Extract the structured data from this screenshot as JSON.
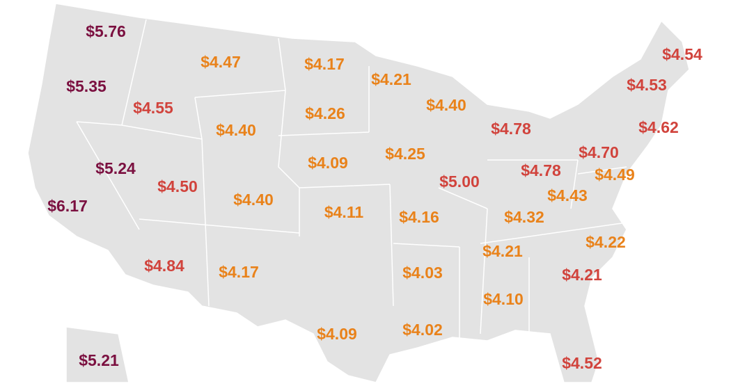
{
  "labels": [
    {
      "text": "$5.76",
      "color": "#7b1040"
    },
    {
      "text": "$4.47",
      "color": "#e9821a"
    },
    {
      "text": "$4.17",
      "color": "#e9821a"
    },
    {
      "text": "$4.54",
      "color": "#d1433c"
    },
    {
      "text": "$5.35",
      "color": "#7b1040"
    },
    {
      "text": "$4.21",
      "color": "#e9821a"
    },
    {
      "text": "$4.53",
      "color": "#d1433c"
    },
    {
      "text": "$4.55",
      "color": "#d1433c"
    },
    {
      "text": "$4.26",
      "color": "#e9821a"
    },
    {
      "text": "$4.40",
      "color": "#e9821a"
    },
    {
      "text": "$4.40",
      "color": "#e9821a"
    },
    {
      "text": "$4.78",
      "color": "#d1433c"
    },
    {
      "text": "$4.62",
      "color": "#d1433c"
    },
    {
      "text": "$4.25",
      "color": "#e9821a"
    },
    {
      "text": "$4.70",
      "color": "#d1433c"
    },
    {
      "text": "$5.24",
      "color": "#7b1040"
    },
    {
      "text": "$4.09",
      "color": "#e9821a"
    },
    {
      "text": "$4.78",
      "color": "#d1433c"
    },
    {
      "text": "$4.49",
      "color": "#e9821a"
    },
    {
      "text": "$4.50",
      "color": "#d1433c"
    },
    {
      "text": "$5.00",
      "color": "#d1433c"
    },
    {
      "text": "$4.40",
      "color": "#e9821a"
    },
    {
      "text": "$4.43",
      "color": "#e9821a"
    },
    {
      "text": "$6.17",
      "color": "#7b1040"
    },
    {
      "text": "$4.11",
      "color": "#e9821a"
    },
    {
      "text": "$4.16",
      "color": "#e9821a"
    },
    {
      "text": "$4.32",
      "color": "#e9821a"
    },
    {
      "text": "$4.22",
      "color": "#e9821a"
    },
    {
      "text": "$4.21",
      "color": "#e9821a"
    },
    {
      "text": "$4.84",
      "color": "#d1433c"
    },
    {
      "text": "$4.17",
      "color": "#e9821a"
    },
    {
      "text": "$4.03",
      "color": "#e9821a"
    },
    {
      "text": "$4.21",
      "color": "#d1433c"
    },
    {
      "text": "$4.10",
      "color": "#e9821a"
    },
    {
      "text": "$4.02",
      "color": "#e9821a"
    },
    {
      "text": "$4.09",
      "color": "#e9821a"
    },
    {
      "text": "$5.21",
      "color": "#7b1040"
    },
    {
      "text": "$4.52",
      "color": "#d1433c"
    }
  ]
}
